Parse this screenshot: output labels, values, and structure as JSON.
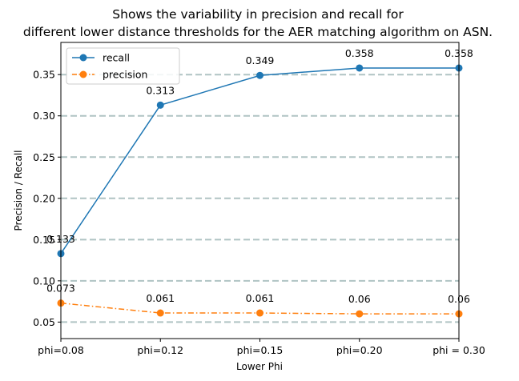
{
  "chart_data": {
    "type": "line",
    "title_line1": "Shows the variability in precision and recall for",
    "title_line2": "different lower distance thresholds for the AER matching algorithm on ASN.",
    "xlabel": "Lower Phi",
    "ylabel": "Precision / Recall",
    "categories": [
      "phi=0.08",
      "phi=0.12",
      "phi=0.15",
      "phi=0.20",
      "phi = 0.30"
    ],
    "ylim": [
      0.03,
      0.389
    ],
    "yticks": [
      0.05,
      0.1,
      0.15,
      0.2,
      0.25,
      0.3,
      0.35
    ],
    "ytick_labels": [
      "0.05",
      "0.10",
      "0.15",
      "0.20",
      "0.25",
      "0.30",
      "0.35"
    ],
    "grid": "horizontal dashed",
    "legend_position": "top-left",
    "series": [
      {
        "name": "recall",
        "values": [
          0.133,
          0.313,
          0.349,
          0.358,
          0.358
        ],
        "labels": [
          "0.133",
          "0.313",
          "0.349",
          "0.358",
          "0.358"
        ],
        "color": "#1f77b4",
        "linestyle": "solid"
      },
      {
        "name": "precision",
        "values": [
          0.073,
          0.061,
          0.061,
          0.06,
          0.06
        ],
        "labels": [
          "0.073",
          "0.061",
          "0.061",
          "0.06",
          "0.06"
        ],
        "color": "#ff7f0e",
        "linestyle": "dashdot"
      }
    ],
    "grid_color": "#b0c4c4"
  }
}
